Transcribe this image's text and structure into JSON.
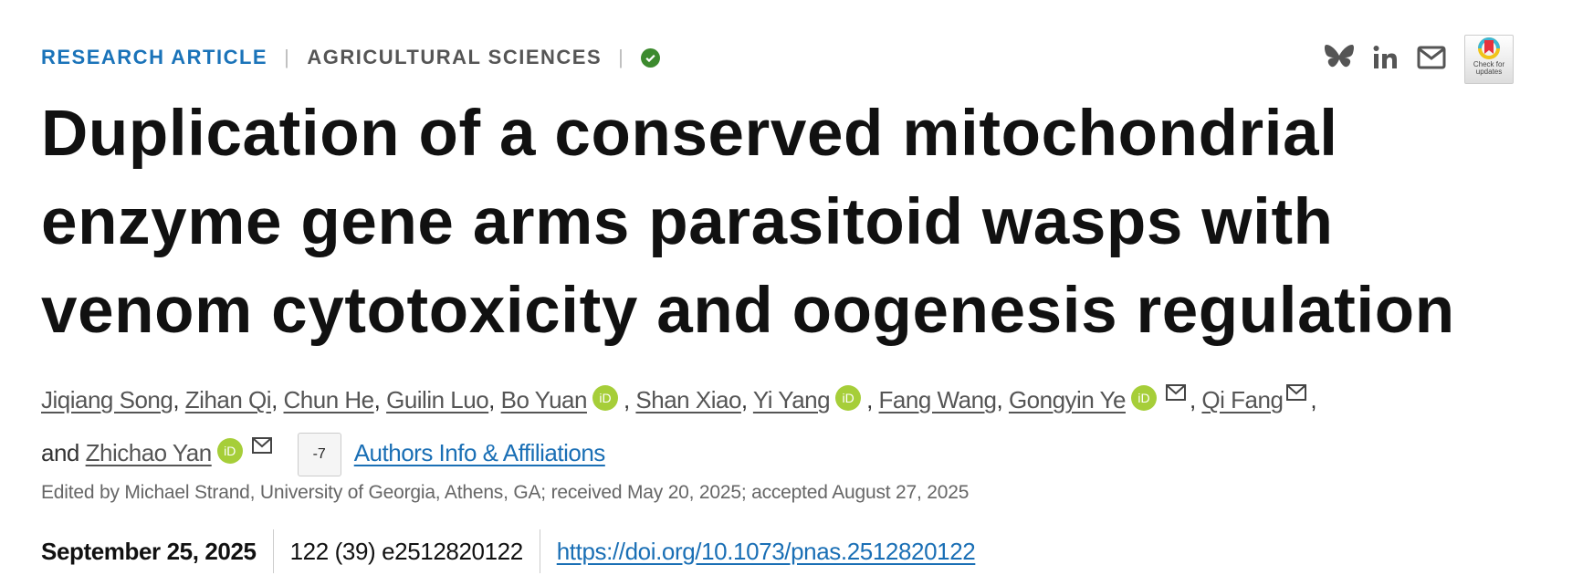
{
  "header": {
    "article_type": "RESEARCH ARTICLE",
    "section": "AGRICULTURAL SCIENCES",
    "verified_icon": "check-circle-icon"
  },
  "share": {
    "icons": [
      "bluesky-icon",
      "linkedin-icon",
      "email-icon"
    ],
    "check_updates": "Check for updates"
  },
  "title": "Duplication of a conserved mitochondrial enzyme gene arms parasitoid wasps with venom cytotoxicity and oogenesis regulation",
  "authors": {
    "names": [
      "Jiqiang Song",
      "Zihan Qi",
      "Chun He",
      "Guilin Luo",
      "Bo Yuan",
      "Shan Xiao",
      "Yi Yang",
      "Fang Wang",
      "Gongyin Ye",
      "Qi Fang",
      "Zhichao Yan"
    ],
    "and": "and",
    "orcid_label": "iD",
    "more_button": "-7",
    "affiliations_link": "Authors Info & Affiliations"
  },
  "edited": "Edited by Michael Strand, University of Georgia, Athens, GA; received May 20, 2025; accepted August 27, 2025",
  "publication": {
    "date": "September 25, 2025",
    "citation": "122 (39) e2512820122",
    "doi": "https://doi.org/10.1073/pnas.2512820122"
  },
  "colors": {
    "accent": "#1a73b9",
    "orcid": "#a6ce39",
    "verified": "#3c8a2e"
  }
}
